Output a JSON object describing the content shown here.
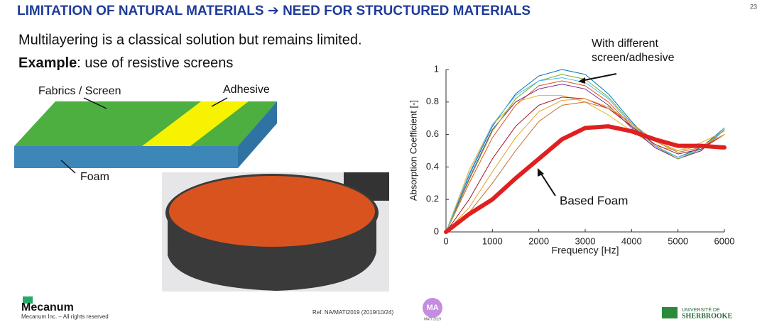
{
  "slide": {
    "title": "LIMITATION OF NATURAL MATERIALS ➔ NEED FOR STRUCTURED MATERIALS",
    "page_number": "23",
    "line1": "Multilayering is a classical solution but remains limited.",
    "line2_bold": "Example",
    "line2_rest": ": use of resistive screens",
    "diagram": {
      "screen": "Fabrics / Screen",
      "adhesive": "Adhesive",
      "foam": "Foam"
    },
    "footer": {
      "company": "Mecanum",
      "rights": "Mecanum Inc. – All rights reserved",
      "reference": "Ref. NA/MATI2019  (2019/10/24)",
      "logo_text": "MA",
      "conference": "MATI 2019",
      "university_line1": "UNIVERSITÉ DE",
      "university_line2": "SHERBROOKE"
    }
  },
  "chart_data": {
    "type": "line",
    "xlabel": "Frequency [Hz]",
    "ylabel": "Absorption Coefficient [-]",
    "annotations": {
      "screens": [
        "With different",
        "screen/adhesive"
      ],
      "foam": "Based Foam"
    },
    "x": [
      0,
      500,
      1000,
      1500,
      2000,
      2500,
      3000,
      3500,
      4000,
      4500,
      5000,
      5500,
      6000
    ],
    "xlim": [
      0,
      6000
    ],
    "ylim": [
      0,
      1
    ],
    "xticks": [
      0,
      1000,
      2000,
      3000,
      4000,
      5000,
      6000
    ],
    "yticks": [
      0,
      0.2,
      0.4,
      0.6,
      0.8,
      1
    ],
    "grid": false,
    "series": [
      {
        "color": "#0072bd",
        "width": 1,
        "values": [
          0,
          0.35,
          0.65,
          0.85,
          0.96,
          1.0,
          0.97,
          0.85,
          0.68,
          0.53,
          0.46,
          0.52,
          0.64
        ]
      },
      {
        "color": "#d95319",
        "width": 1,
        "values": [
          0,
          0.3,
          0.58,
          0.78,
          0.9,
          0.93,
          0.9,
          0.8,
          0.65,
          0.52,
          0.45,
          0.5,
          0.63
        ]
      },
      {
        "color": "#edb120",
        "width": 1,
        "values": [
          0,
          0.38,
          0.66,
          0.8,
          0.84,
          0.84,
          0.8,
          0.72,
          0.62,
          0.53,
          0.5,
          0.55,
          0.62
        ]
      },
      {
        "color": "#7e2f8e",
        "width": 1,
        "values": [
          0,
          0.33,
          0.63,
          0.8,
          0.88,
          0.91,
          0.88,
          0.78,
          0.64,
          0.52,
          0.45,
          0.5,
          0.63
        ]
      },
      {
        "color": "#77ac30",
        "width": 1,
        "values": [
          0,
          0.32,
          0.62,
          0.82,
          0.93,
          0.97,
          0.94,
          0.83,
          0.67,
          0.53,
          0.45,
          0.51,
          0.64
        ]
      },
      {
        "color": "#4dbeee",
        "width": 1,
        "values": [
          0,
          0.36,
          0.66,
          0.84,
          0.93,
          0.95,
          0.92,
          0.82,
          0.66,
          0.53,
          0.46,
          0.51,
          0.63
        ]
      },
      {
        "color": "#a2142f",
        "width": 1,
        "values": [
          0,
          0.2,
          0.45,
          0.65,
          0.78,
          0.83,
          0.82,
          0.76,
          0.65,
          0.54,
          0.48,
          0.51,
          0.6
        ]
      },
      {
        "color": "#c07030",
        "width": 1,
        "values": [
          0,
          0.12,
          0.3,
          0.5,
          0.68,
          0.78,
          0.8,
          0.76,
          0.67,
          0.56,
          0.49,
          0.52,
          0.6
        ]
      },
      {
        "color": "#e8a030",
        "width": 1,
        "values": [
          0,
          0.15,
          0.37,
          0.58,
          0.74,
          0.81,
          0.82,
          0.77,
          0.67,
          0.56,
          0.5,
          0.53,
          0.6
        ]
      },
      {
        "color": "#e02020",
        "width": 6,
        "values": [
          0,
          0.11,
          0.2,
          0.33,
          0.45,
          0.57,
          0.64,
          0.65,
          0.62,
          0.57,
          0.53,
          0.53,
          0.52
        ]
      }
    ]
  }
}
